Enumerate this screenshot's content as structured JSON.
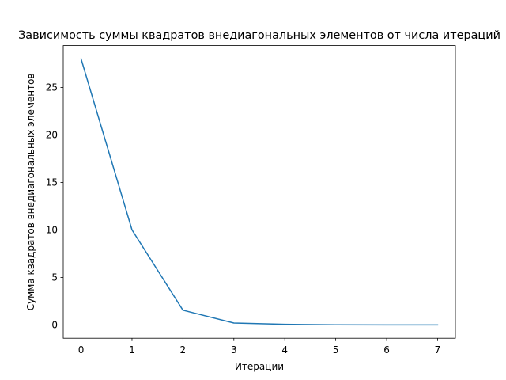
{
  "chart_data": {
    "type": "line",
    "title": "Зависимость суммы квадратов внедиагональных элементов от числа итераций",
    "xlabel": "Итерации",
    "ylabel": "Сумма квадратов внедиагональных элементов",
    "x": [
      0,
      1,
      2,
      3,
      4,
      5,
      6,
      7
    ],
    "series": [
      {
        "values": [
          28.0,
          10.0,
          1.55,
          0.2,
          0.06,
          0.01,
          0.005,
          0.002
        ],
        "color": "#1f77b4"
      }
    ],
    "xlim": [
      -0.35,
      7.35
    ],
    "ylim": [
      -1.4,
      29.4
    ],
    "xticks": [
      0,
      1,
      2,
      3,
      4,
      5,
      6,
      7
    ],
    "yticks": [
      0,
      5,
      10,
      15,
      20,
      25
    ],
    "grid": false,
    "legend": "none"
  }
}
